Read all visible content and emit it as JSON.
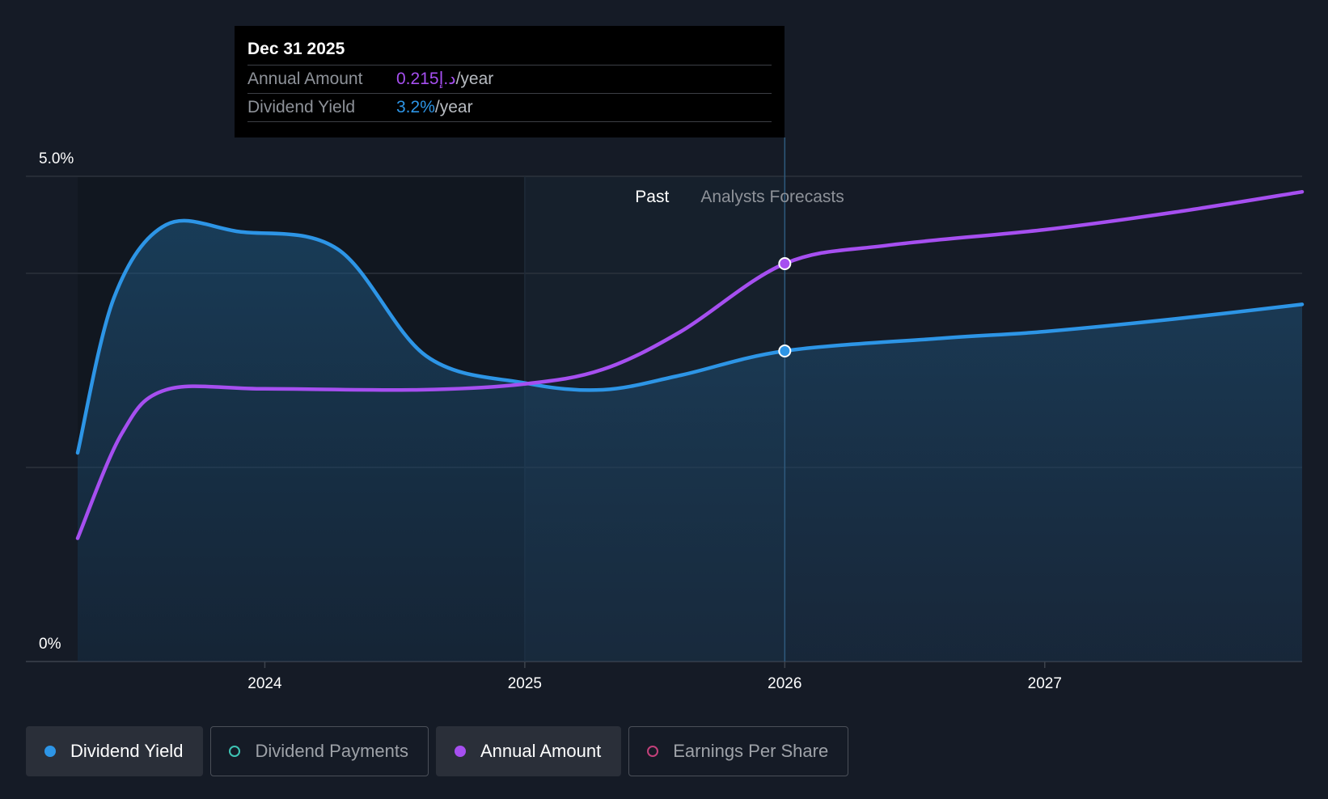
{
  "chart_data": {
    "type": "line",
    "x_range": [
      2023.28,
      2027.99
    ],
    "ylim": [
      0,
      5.0
    ],
    "y_ticks": [
      {
        "value": 5.0,
        "label": "5.0%"
      },
      {
        "value": 0,
        "label": "0%"
      }
    ],
    "y_gridlines": [
      5.0,
      4.0,
      2.0
    ],
    "x_ticks": [
      {
        "value": 2024,
        "label": "2024"
      },
      {
        "value": 2025,
        "label": "2025"
      },
      {
        "value": 2026,
        "label": "2026"
      },
      {
        "value": 2027,
        "label": "2027"
      }
    ],
    "past_label": "Past",
    "forecast_label": "Analysts Forecasts",
    "divider_x": 2026.0,
    "past_shade_start": 2025.0,
    "series": [
      {
        "name": "Dividend Yield",
        "color": "#2d95e6",
        "area": true,
        "points": [
          [
            2023.28,
            2.15
          ],
          [
            2023.42,
            3.75
          ],
          [
            2023.62,
            4.5
          ],
          [
            2023.9,
            4.43
          ],
          [
            2024.28,
            4.25
          ],
          [
            2024.62,
            3.15
          ],
          [
            2025.0,
            2.87
          ],
          [
            2025.3,
            2.8
          ],
          [
            2025.6,
            2.95
          ],
          [
            2026.0,
            3.2
          ],
          [
            2026.6,
            3.33
          ],
          [
            2027.0,
            3.4
          ],
          [
            2027.5,
            3.53
          ],
          [
            2027.99,
            3.68
          ]
        ]
      },
      {
        "name": "Annual Amount",
        "color": "#a64ff0",
        "area": false,
        "points": [
          [
            2023.28,
            1.27
          ],
          [
            2023.45,
            2.35
          ],
          [
            2023.62,
            2.8
          ],
          [
            2024.0,
            2.81
          ],
          [
            2024.6,
            2.8
          ],
          [
            2025.0,
            2.86
          ],
          [
            2025.3,
            3.01
          ],
          [
            2025.6,
            3.4
          ],
          [
            2026.0,
            4.1
          ],
          [
            2026.4,
            4.29
          ],
          [
            2027.0,
            4.45
          ],
          [
            2027.5,
            4.63
          ],
          [
            2027.99,
            4.84
          ]
        ]
      }
    ],
    "markers": [
      {
        "series": "Annual Amount",
        "x": 2026.0,
        "y": 4.1
      },
      {
        "series": "Dividend Yield",
        "x": 2026.0,
        "y": 3.2
      }
    ]
  },
  "tooltip": {
    "date": "Dec 31 2025",
    "rows": [
      {
        "label": "Annual Amount",
        "value": "0.215د.إ",
        "unit": "/year"
      },
      {
        "label": "Dividend Yield",
        "value": "3.2%",
        "unit": "/year"
      }
    ]
  },
  "legend": [
    {
      "label": "Dividend Yield",
      "color": "#2d95e6",
      "active": true,
      "filled": true
    },
    {
      "label": "Dividend Payments",
      "color": "#3ec4b4",
      "active": false,
      "filled": false
    },
    {
      "label": "Annual Amount",
      "color": "#a64ff0",
      "active": true,
      "filled": true
    },
    {
      "label": "Earnings Per Share",
      "color": "#c2407a",
      "active": false,
      "filled": false
    }
  ]
}
